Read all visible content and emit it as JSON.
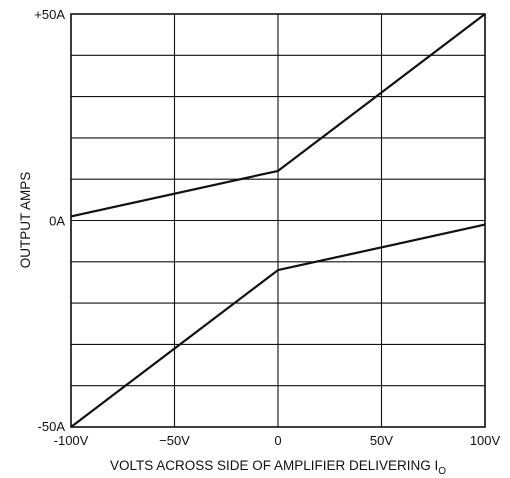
{
  "chart_data": {
    "type": "line",
    "xlabel": "VOLTS ACROSS SIDE OF AMPLIFIER DELIVERING I",
    "xlabel_subscript": "O",
    "ylabel": "OUTPUT AMPS",
    "xlim": [
      -100,
      100
    ],
    "ylim": [
      -50,
      50
    ],
    "grid": true,
    "x_tick_values": [
      -100,
      -50,
      0,
      50,
      100
    ],
    "x_tick_labels": [
      "-100V",
      "−50V",
      "0",
      "50V",
      "100V"
    ],
    "y_tick_values": [
      50,
      0,
      -50
    ],
    "y_tick_labels": [
      "+50A",
      "0A",
      "-50A"
    ],
    "y_minor_grid_step": 10,
    "series": [
      {
        "x": [
          -100,
          0,
          100
        ],
        "y": [
          1,
          12,
          50
        ]
      },
      {
        "x": [
          -100,
          0,
          100
        ],
        "y": [
          -50,
          -12,
          -1
        ]
      }
    ]
  }
}
